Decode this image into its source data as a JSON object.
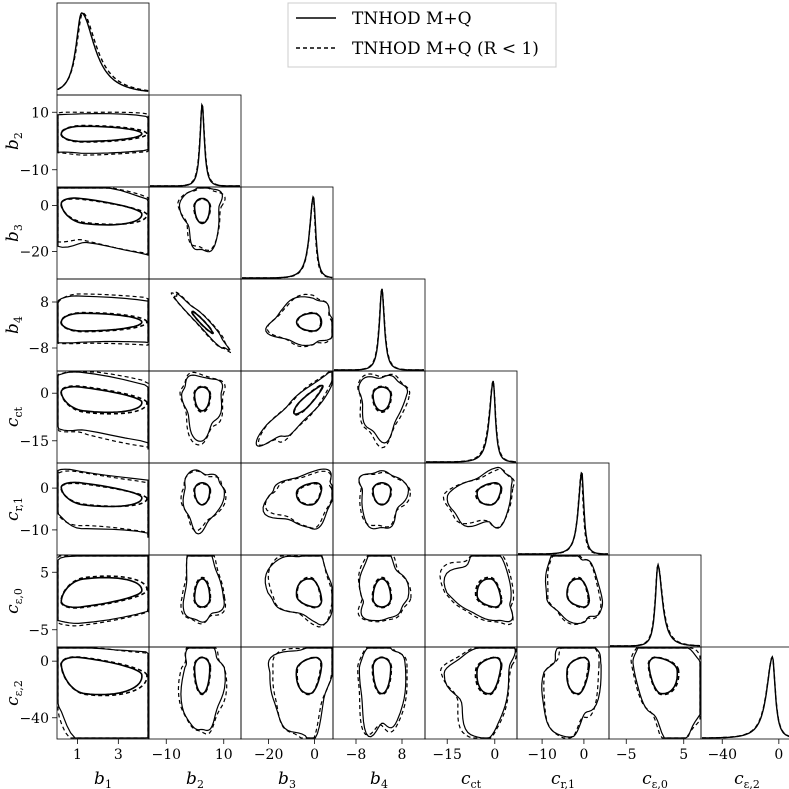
{
  "chart_data": {
    "type": "corner",
    "parameters": [
      {
        "name": "b_1",
        "symbol": "b",
        "sub": "1",
        "range": [
          0,
          4.5
        ],
        "ticks": [
          1,
          3
        ]
      },
      {
        "name": "b_2",
        "symbol": "b",
        "sub": "2",
        "range": [
          -16,
          16
        ],
        "ticks": [
          -10,
          10
        ]
      },
      {
        "name": "b_3",
        "symbol": "b",
        "sub": "3",
        "range": [
          -32,
          8
        ],
        "ticks": [
          -20,
          0
        ]
      },
      {
        "name": "b_4",
        "symbol": "b",
        "sub": "4",
        "range": [
          -16,
          16
        ],
        "ticks": [
          -8,
          8
        ]
      },
      {
        "name": "c_ct",
        "symbol": "c",
        "sub": "ct",
        "range": [
          -22,
          7
        ],
        "ticks": [
          -15,
          0
        ]
      },
      {
        "name": "c_r,1",
        "symbol": "c",
        "sub": "r,1",
        "range": [
          -16,
          6
        ],
        "ticks": [
          -10,
          0
        ]
      },
      {
        "name": "c_e,0",
        "symbol": "c",
        "sub": "ε,0",
        "range": [
          -8,
          8
        ],
        "ticks": [
          -5,
          5
        ]
      },
      {
        "name": "c_e,2",
        "symbol": "c",
        "sub": "ε,2",
        "range": [
          -55,
          10
        ],
        "ticks": [
          -40,
          0
        ]
      }
    ],
    "series": [
      {
        "name": "TNHOD M+Q",
        "style": "solid",
        "color": "#000000",
        "peaks": [
          1.2,
          2.5,
          -0.5,
          1.0,
          -0.5,
          -0.5,
          0.5,
          -4.5
        ],
        "widths": [
          0.45,
          1.2,
          1.6,
          1.4,
          1.1,
          0.8,
          0.7,
          3.2
        ],
        "skews": [
          2.2,
          0,
          -1.2,
          0,
          -1.2,
          -1.1,
          1.3,
          -1.8
        ]
      },
      {
        "name": "TNHOD M+Q (R < 1)",
        "style": "dashed",
        "color": "#000000",
        "peaks": [
          1.25,
          2.5,
          -0.6,
          1.0,
          -0.5,
          -0.6,
          0.5,
          -4.5
        ],
        "widths": [
          0.48,
          1.3,
          1.5,
          1.5,
          1.2,
          0.75,
          0.75,
          3.3
        ],
        "skews": [
          2.2,
          0,
          -1.2,
          0,
          -1.2,
          -1.1,
          1.3,
          -1.8
        ]
      }
    ],
    "legend": {
      "position": "top-right"
    }
  }
}
